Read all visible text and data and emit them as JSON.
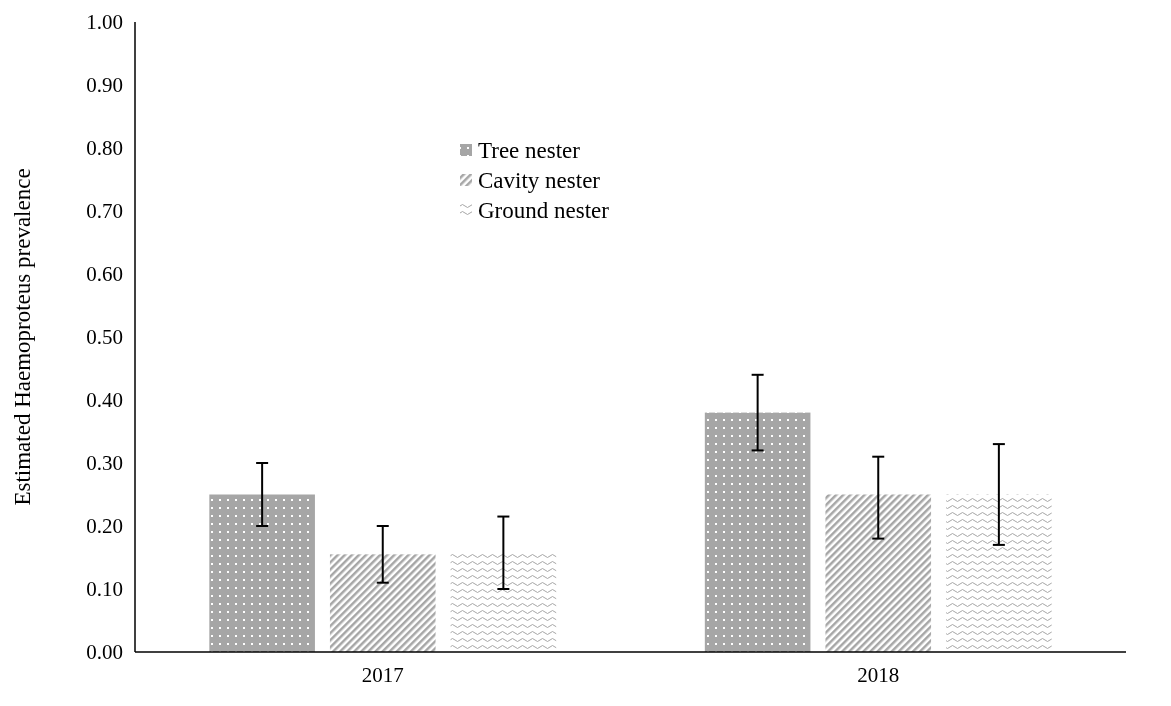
{
  "chart_data": {
    "type": "bar",
    "ylabel": "Estimated Haemoproteus prevalence",
    "categories": [
      "2017",
      "2018"
    ],
    "series": [
      {
        "name": "Tree nester",
        "color": "#a6a6a6",
        "values": [
          0.25,
          0.38
        ],
        "errors": [
          [
            0.2,
            0.3
          ],
          [
            0.32,
            0.44
          ]
        ]
      },
      {
        "name": "Cavity nester",
        "color": "#a6a6a6",
        "values": [
          0.155,
          0.25
        ],
        "errors": [
          [
            0.11,
            0.2
          ],
          [
            0.18,
            0.31
          ]
        ]
      },
      {
        "name": "Ground nester",
        "color": "#a6a6a6",
        "values": [
          0.16,
          0.25
        ],
        "errors": [
          [
            0.1,
            0.215
          ],
          [
            0.17,
            0.33
          ]
        ]
      }
    ],
    "ylim": [
      0,
      1
    ],
    "yticks": [
      {
        "value": 0,
        "label": "0.00"
      },
      {
        "value": 0.1,
        "label": "0.10"
      },
      {
        "value": 0.2,
        "label": "0.20"
      },
      {
        "value": 0.3,
        "label": "0.30"
      },
      {
        "value": 0.4,
        "label": "0.40"
      },
      {
        "value": 0.5,
        "label": "0.50"
      },
      {
        "value": 0.6,
        "label": "0.60"
      },
      {
        "value": 0.7,
        "label": "0.70"
      },
      {
        "value": 0.8,
        "label": "0.80"
      },
      {
        "value": 0.9,
        "label": "0.90"
      },
      {
        "value": 1,
        "label": "1.00"
      }
    ],
    "grid": false,
    "legend": "top"
  }
}
